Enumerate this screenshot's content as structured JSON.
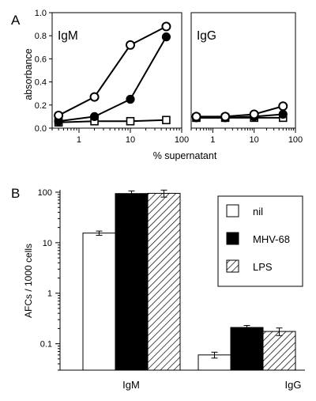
{
  "panel_a": {
    "label": "A",
    "ylabel": "absorbance",
    "xlabel": "% supernatant",
    "y_ticks": [
      "0.0",
      "0.2",
      "0.4",
      "0.6",
      "0.8",
      "1.0"
    ],
    "x_ticks": [
      "1",
      "10",
      "100"
    ]
  },
  "panel_b": {
    "label": "B",
    "ylabel": "AFCs / 1000 cells",
    "y_ticks": [
      "0.1",
      "1",
      "10",
      "100"
    ],
    "legend": [
      "nil",
      "MHV-68",
      "LPS"
    ]
  },
  "colors": {
    "nil": "#ffffff",
    "MHV-68": "#000000",
    "LPS": "hatched"
  },
  "chart_data": [
    {
      "type": "line",
      "title": "IgM",
      "xlabel": "% supernatant",
      "ylabel": "absorbance",
      "x_scale": "log",
      "xlim": [
        0.3,
        100
      ],
      "ylim": [
        0,
        1.0
      ],
      "x": [
        0.4,
        2,
        10,
        50
      ],
      "series": [
        {
          "marker": "open-circle",
          "values": [
            0.11,
            0.27,
            0.72,
            0.88
          ]
        },
        {
          "marker": "filled-circle",
          "values": [
            0.06,
            0.1,
            0.25,
            0.79
          ]
        },
        {
          "marker": "open-square",
          "values": [
            0.05,
            0.06,
            0.06,
            0.07
          ]
        }
      ]
    },
    {
      "type": "line",
      "title": "IgG",
      "xlabel": "% supernatant",
      "ylabel": "absorbance",
      "x_scale": "log",
      "xlim": [
        0.3,
        100
      ],
      "ylim": [
        0,
        1.0
      ],
      "x": [
        0.4,
        2,
        10,
        50
      ],
      "series": [
        {
          "marker": "open-circle",
          "values": [
            0.1,
            0.1,
            0.12,
            0.19
          ]
        },
        {
          "marker": "filled-circle",
          "values": [
            0.09,
            0.09,
            0.1,
            0.12
          ]
        },
        {
          "marker": "open-square",
          "values": [
            0.09,
            0.09,
            0.09,
            0.09
          ]
        }
      ]
    },
    {
      "type": "bar",
      "ylabel": "AFCs / 1000 cells",
      "y_scale": "log",
      "ylim": [
        0.03,
        100
      ],
      "categories": [
        "IgM",
        "IgG"
      ],
      "legend_position": "top-right",
      "series": [
        {
          "name": "nil",
          "values": [
            15.5,
            0.06
          ],
          "error": [
            1.5,
            0.008
          ]
        },
        {
          "name": "MHV-68",
          "values": [
            94,
            0.21
          ],
          "error": [
            12,
            0.02
          ]
        },
        {
          "name": "LPS",
          "values": [
            95,
            0.175
          ],
          "error": [
            15,
            0.03
          ]
        }
      ]
    }
  ]
}
